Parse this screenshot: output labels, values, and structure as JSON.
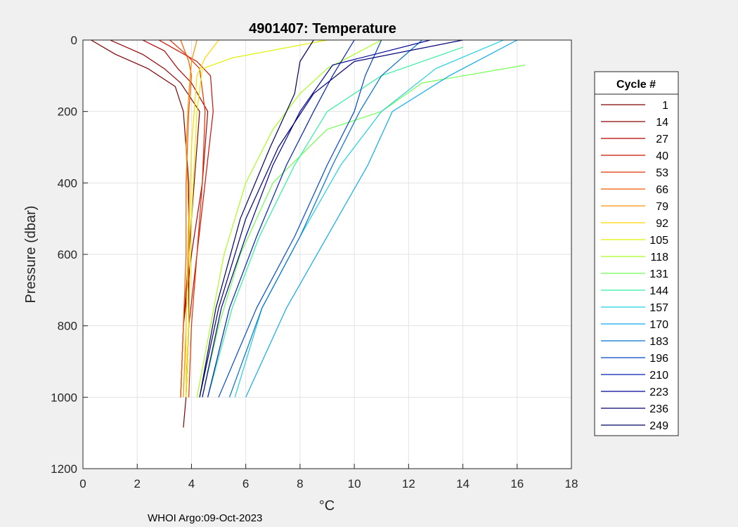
{
  "chart_data": {
    "type": "line",
    "title": "4901407:  Temperature",
    "xlabel": "°C",
    "ylabel": "Pressure (dbar)",
    "xlim": [
      0,
      18
    ],
    "ylim": [
      0,
      1200
    ],
    "y_reversed": true,
    "grid": true,
    "x_ticks": [
      "0",
      "2",
      "4",
      "6",
      "8",
      "10",
      "12",
      "14",
      "16",
      "18"
    ],
    "y_ticks": [
      "0",
      "200",
      "400",
      "600",
      "800",
      "1000",
      "1200"
    ],
    "legend": {
      "title": "Cycle #",
      "position": "right",
      "entries": [
        {
          "label": "1",
          "color": "#800000"
        },
        {
          "label": "14",
          "color": "#8f0000"
        },
        {
          "label": "27",
          "color": "#b00000"
        },
        {
          "label": "40",
          "color": "#cc1000"
        },
        {
          "label": "53",
          "color": "#e43000"
        },
        {
          "label": "66",
          "color": "#f05a00"
        },
        {
          "label": "79",
          "color": "#f89000"
        },
        {
          "label": "92",
          "color": "#ffd800"
        },
        {
          "label": "105",
          "color": "#e0f000"
        },
        {
          "label": "118",
          "color": "#a8ff20"
        },
        {
          "label": "131",
          "color": "#70ff50"
        },
        {
          "label": "144",
          "color": "#30f0a0"
        },
        {
          "label": "157",
          "color": "#20d0e0"
        },
        {
          "label": "170",
          "color": "#10a8f0"
        },
        {
          "label": "183",
          "color": "#0070d0"
        },
        {
          "label": "196",
          "color": "#0048c8"
        },
        {
          "label": "210",
          "color": "#0020b0"
        },
        {
          "label": "223",
          "color": "#000098"
        },
        {
          "label": "236",
          "color": "#000078"
        },
        {
          "label": "249",
          "color": "#000060"
        }
      ]
    },
    "series": [
      {
        "name": "1",
        "color": "#800000",
        "temp": [
          0.3,
          1.2,
          2.4,
          3.4,
          3.7,
          3.9,
          3.9,
          3.9,
          3.8,
          3.7
        ],
        "pressure": [
          0,
          40,
          80,
          130,
          200,
          400,
          600,
          800,
          1000,
          1085
        ]
      },
      {
        "name": "14",
        "color": "#8f0000",
        "temp": [
          1.0,
          2.2,
          3.0,
          3.6,
          4.3,
          4.1,
          3.9,
          3.7,
          3.6
        ],
        "pressure": [
          0,
          40,
          80,
          120,
          200,
          400,
          600,
          800,
          1000
        ]
      },
      {
        "name": "27",
        "color": "#b00000",
        "temp": [
          2.2,
          3.0,
          3.5,
          4.0,
          4.6,
          4.4,
          4.0,
          3.7,
          3.6
        ],
        "pressure": [
          0,
          30,
          80,
          120,
          200,
          400,
          600,
          800,
          1000
        ]
      },
      {
        "name": "40",
        "color": "#cc1000",
        "temp": [
          2.8,
          3.5,
          4.2,
          4.7,
          4.8,
          4.5,
          4.2,
          3.9,
          3.8
        ],
        "pressure": [
          0,
          30,
          60,
          100,
          200,
          400,
          600,
          800,
          1000
        ]
      },
      {
        "name": "53",
        "color": "#e43000",
        "temp": [
          3.2,
          3.8,
          4.3,
          4.5,
          4.4,
          4.2,
          4.0,
          3.9
        ],
        "pressure": [
          0,
          40,
          80,
          200,
          400,
          600,
          800,
          1000
        ]
      },
      {
        "name": "66",
        "color": "#f05a00",
        "temp": [
          3.6,
          3.9,
          4.0,
          3.9,
          3.8,
          3.8,
          3.7,
          3.6
        ],
        "pressure": [
          0,
          60,
          100,
          200,
          400,
          600,
          800,
          1000
        ]
      },
      {
        "name": "79",
        "color": "#f89000",
        "temp": [
          4.2,
          4.0,
          3.9,
          3.8,
          3.9,
          3.8,
          3.7
        ],
        "pressure": [
          0,
          60,
          150,
          300,
          500,
          800,
          1000
        ]
      },
      {
        "name": "92",
        "color": "#ffd800",
        "temp": [
          5.0,
          4.5,
          4.2,
          4.0,
          3.9,
          3.8,
          3.8
        ],
        "pressure": [
          0,
          50,
          100,
          300,
          600,
          800,
          1000
        ]
      },
      {
        "name": "105",
        "color": "#e0f000",
        "temp": [
          9.0,
          5.5,
          4.4,
          4.2,
          4.0,
          3.9,
          3.8
        ],
        "pressure": [
          0,
          50,
          80,
          200,
          500,
          800,
          1000
        ]
      },
      {
        "name": "118",
        "color": "#a8ff20",
        "temp": [
          11.0,
          9.0,
          8.0,
          7.0,
          6.0,
          5.2,
          4.7,
          4.2
        ],
        "pressure": [
          0,
          80,
          150,
          250,
          400,
          600,
          800,
          1000
        ]
      },
      {
        "name": "131",
        "color": "#70ff50",
        "temp": [
          16.3,
          12.5,
          11.0,
          9.0,
          7.0,
          5.8,
          5.0,
          4.4
        ],
        "pressure": [
          70,
          120,
          200,
          250,
          400,
          600,
          800,
          1000
        ]
      },
      {
        "name": "144",
        "color": "#30f0a0",
        "temp": [
          14.0,
          11.0,
          9.0,
          7.8,
          6.5,
          5.5,
          4.6
        ],
        "pressure": [
          20,
          100,
          200,
          350,
          550,
          750,
          1000
        ]
      },
      {
        "name": "157",
        "color": "#20d0e0",
        "temp": [
          15.5,
          13.0,
          11.0,
          9.5,
          8.0,
          6.6,
          5.6
        ],
        "pressure": [
          0,
          80,
          200,
          350,
          550,
          750,
          1000
        ]
      },
      {
        "name": "170",
        "color": "#10a8f0",
        "temp": [
          16.0,
          13.5,
          11.4,
          10.5,
          9.0,
          7.5,
          6.0
        ],
        "pressure": [
          0,
          100,
          200,
          350,
          550,
          750,
          1000
        ]
      },
      {
        "name": "183",
        "color": "#0070d0",
        "temp": [
          12.5,
          11.0,
          10.2,
          9.2,
          8.0,
          6.6,
          5.4
        ],
        "pressure": [
          0,
          100,
          200,
          350,
          550,
          750,
          1000
        ]
      },
      {
        "name": "196",
        "color": "#0048c8",
        "temp": [
          11.0,
          10.4,
          10.0,
          9.0,
          7.8,
          6.4,
          5.0
        ],
        "pressure": [
          0,
          100,
          200,
          350,
          550,
          750,
          1000
        ]
      },
      {
        "name": "210",
        "color": "#0020b0",
        "temp": [
          10.0,
          9.2,
          8.5,
          7.5,
          6.4,
          5.4,
          4.6
        ],
        "pressure": [
          0,
          100,
          200,
          350,
          550,
          750,
          1000
        ]
      },
      {
        "name": "223",
        "color": "#000098",
        "temp": [
          12.8,
          9.2,
          8.0,
          7.0,
          6.0,
          5.1,
          4.4
        ],
        "pressure": [
          0,
          70,
          200,
          350,
          550,
          750,
          1000
        ]
      },
      {
        "name": "236",
        "color": "#000078",
        "temp": [
          14.0,
          10.0,
          8.5,
          7.2,
          6.0,
          5.0,
          4.3
        ],
        "pressure": [
          0,
          60,
          150,
          300,
          500,
          750,
          1000
        ]
      },
      {
        "name": "249",
        "color": "#000060",
        "temp": [
          8.5,
          8.0,
          7.8,
          6.9,
          5.8,
          4.9,
          4.3
        ],
        "pressure": [
          0,
          60,
          150,
          300,
          500,
          750,
          1000
        ]
      }
    ]
  },
  "footer": {
    "text": "WHOI Argo:09-Oct-2023"
  }
}
